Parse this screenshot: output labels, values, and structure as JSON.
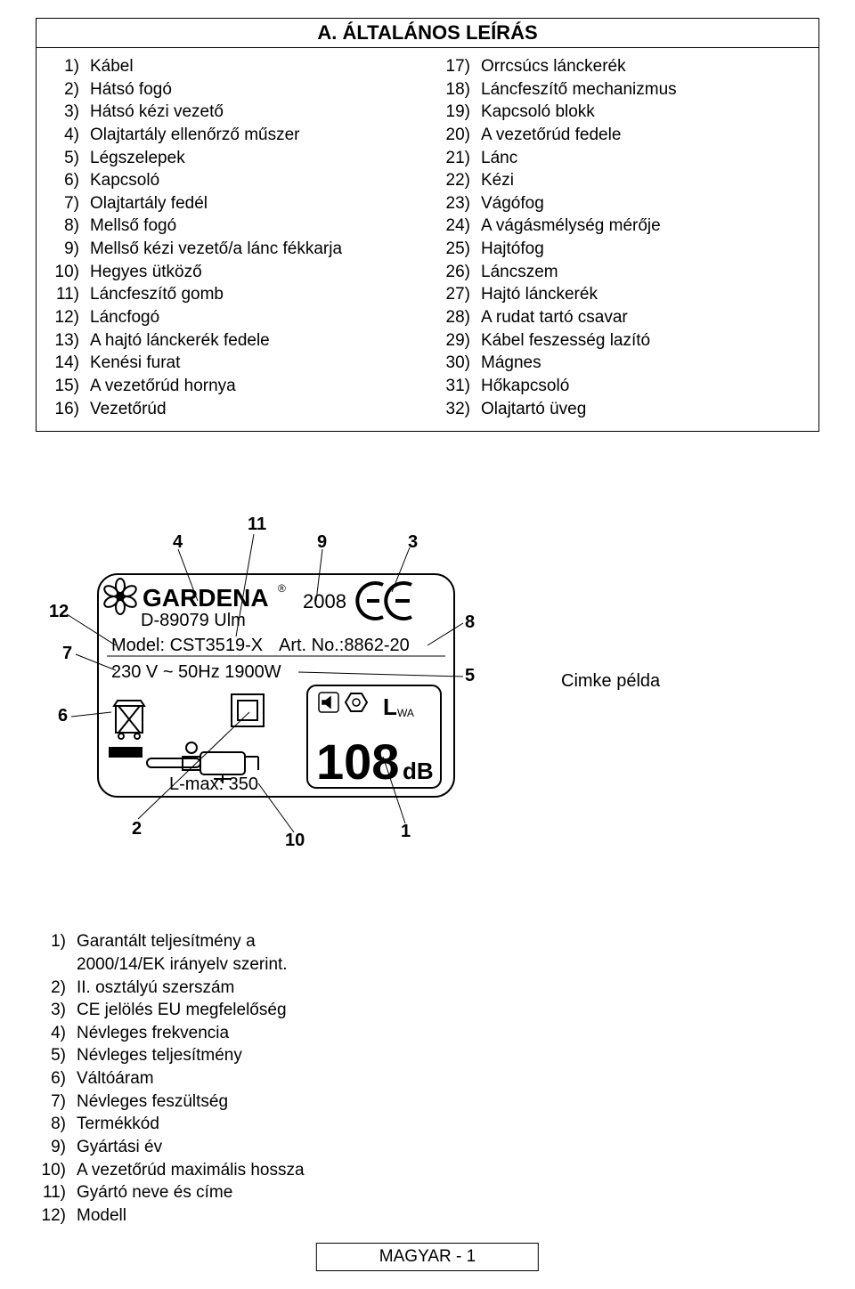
{
  "title": "A. ÁLTALÁNOS LEÍRÁS",
  "parts_left": [
    {
      "n": "1)",
      "t": "Kábel"
    },
    {
      "n": "2)",
      "t": "Hátsó fogó"
    },
    {
      "n": "3)",
      "t": "Hátsó kézi vezető"
    },
    {
      "n": "4)",
      "t": "Olajtartály ellenőrző műszer"
    },
    {
      "n": "5)",
      "t": "Légszelepek"
    },
    {
      "n": "6)",
      "t": "Kapcsoló"
    },
    {
      "n": "7)",
      "t": "Olajtartály fedél"
    },
    {
      "n": "8)",
      "t": "Mellső fogó"
    },
    {
      "n": "9)",
      "t": "Mellső kézi vezető/a lánc fékkarja"
    },
    {
      "n": "10)",
      "t": "Hegyes ütköző"
    },
    {
      "n": "11)",
      "t": "Láncfeszítő gomb"
    },
    {
      "n": "12)",
      "t": "Láncfogó"
    },
    {
      "n": "13)",
      "t": "A hajtó lánckerék fedele"
    },
    {
      "n": "14)",
      "t": "Kenési furat"
    },
    {
      "n": "15)",
      "t": "A vezetőrúd hornya"
    },
    {
      "n": "16)",
      "t": "Vezetőrúd"
    }
  ],
  "parts_right": [
    {
      "n": "17)",
      "t": "Orrcsúcs lánckerék"
    },
    {
      "n": "18)",
      "t": "Láncfeszítő mechanizmus"
    },
    {
      "n": "19)",
      "t": "Kapcsoló blokk"
    },
    {
      "n": "20)",
      "t": "A vezetőrúd fedele"
    },
    {
      "n": "21)",
      "t": "Lánc"
    },
    {
      "n": "22)",
      "t": "Kézi"
    },
    {
      "n": "23)",
      "t": "Vágófog"
    },
    {
      "n": "24)",
      "t": "A vágásmélység mérője"
    },
    {
      "n": "25)",
      "t": "Hajtófog"
    },
    {
      "n": "26)",
      "t": "Láncszem"
    },
    {
      "n": "27)",
      "t": "Hajtó lánckerék"
    },
    {
      "n": "28)",
      "t": "A rudat tartó csavar"
    },
    {
      "n": "29)",
      "t": "Kábel feszesség lazító"
    },
    {
      "n": "30)",
      "t": "Mágnes"
    },
    {
      "n": "31)",
      "t": "Hőkapcsoló"
    },
    {
      "n": "32)",
      "t": "Olajtartó üveg"
    }
  ],
  "label": {
    "brand": "GARDENA",
    "brand_reg": "®",
    "address": "D-89079 Ulm",
    "year": "2008",
    "model_line": "Model: CST3519-X",
    "art_no": "Art. No.:8862-20",
    "voltage": "230 V ~ 50Hz  1900W",
    "lmax": "L-max: 350",
    "lwa": "L",
    "lwa_sub": "WA",
    "db_value": "108",
    "db_unit": "dB",
    "callouts": {
      "c1": "1",
      "c2": "2",
      "c3": "3",
      "c4": "4",
      "c5": "5",
      "c6": "6",
      "c7": "7",
      "c8": "8",
      "c9": "9",
      "c10": "10",
      "c11": "11",
      "c12": "12"
    },
    "cimke": "Cimke példa"
  },
  "bottom_list": [
    {
      "n": "1)",
      "t": "Garantált teljesítmény a 2000/14/EK irányelv szerint."
    },
    {
      "n": "2)",
      "t": "II. osztályú szerszám"
    },
    {
      "n": "3)",
      "t": "CE jelölés EU megfelelőség"
    },
    {
      "n": "4)",
      "t": "Névleges frekvencia"
    },
    {
      "n": "5)",
      "t": "Névleges teljesítmény"
    },
    {
      "n": "6)",
      "t": "Váltóáram"
    },
    {
      "n": "7)",
      "t": "Névleges feszültség"
    },
    {
      "n": "8)",
      "t": "Termékkód"
    },
    {
      "n": "9)",
      "t": "Gyártási év"
    },
    {
      "n": "10)",
      "t": "A vezetőrúd maximális hossza"
    },
    {
      "n": "11)",
      "t": "Gyártó neve és címe"
    },
    {
      "n": "12)",
      "t": "Modell"
    }
  ],
  "footer": "MAGYAR  - 1"
}
